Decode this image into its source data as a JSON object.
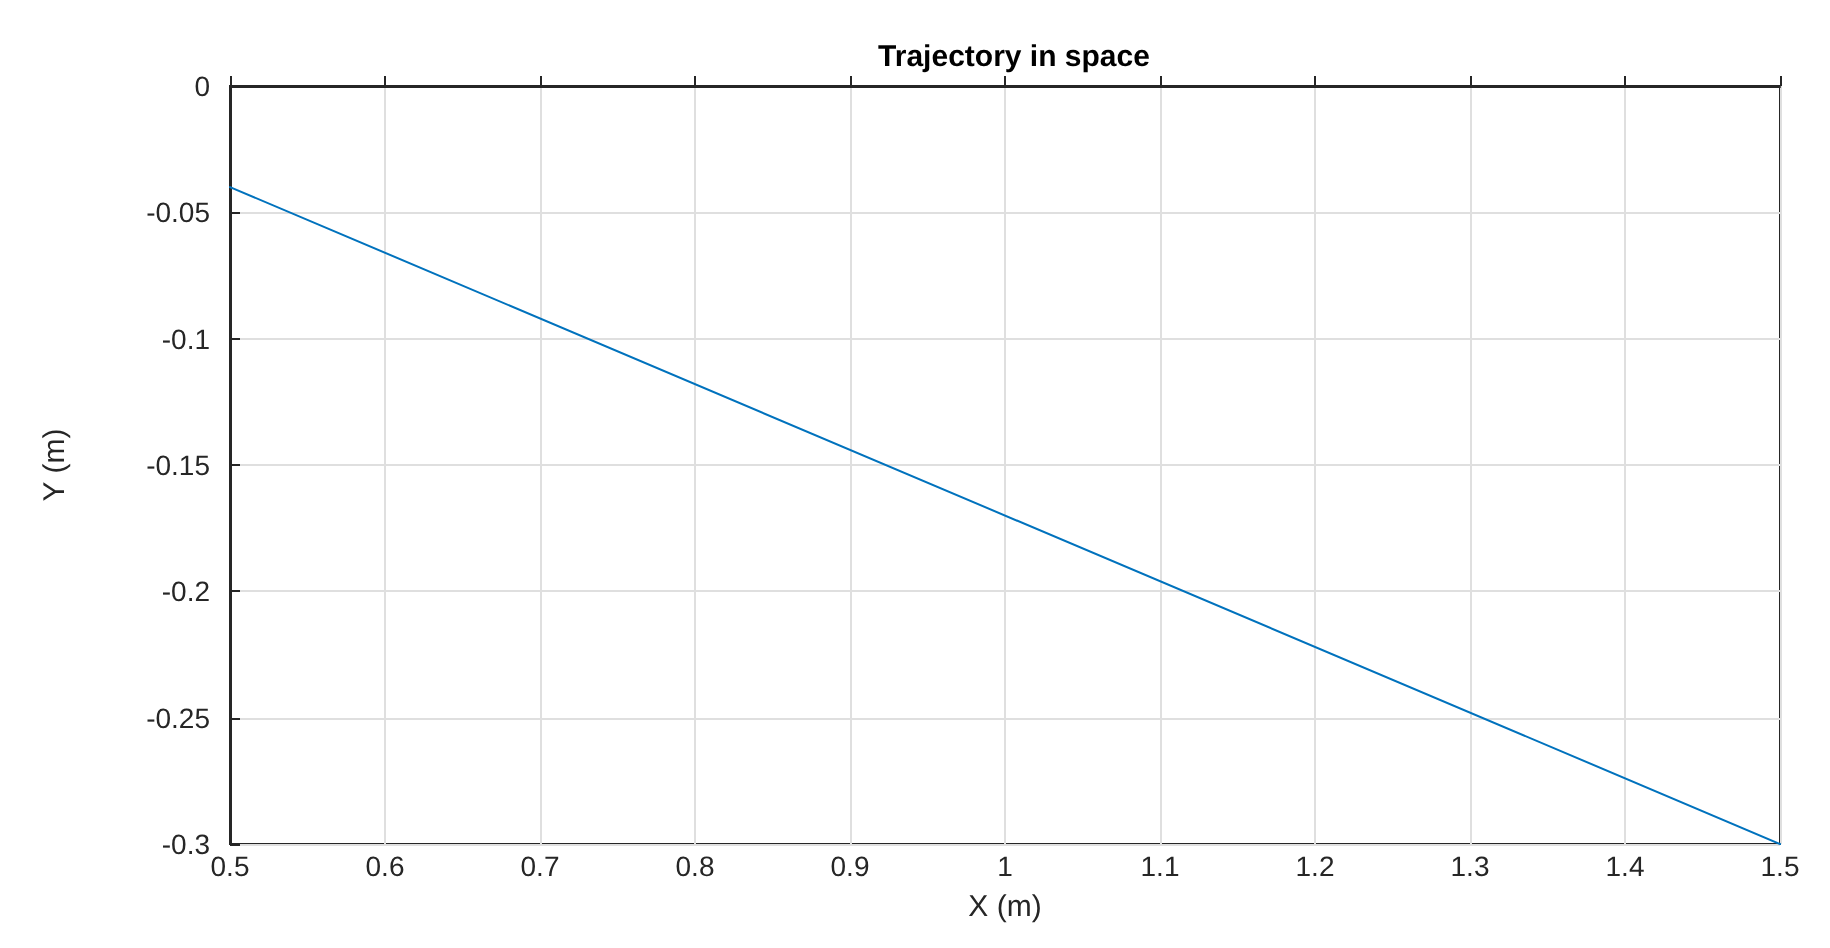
{
  "chart_data": {
    "type": "line",
    "title": "Trajectory in space",
    "xlabel": "X (m)",
    "ylabel": "Y (m)",
    "x": [
      0.5,
      1.5
    ],
    "series": [
      {
        "color": "#0072bd",
        "values": [
          -0.04,
          -0.3
        ]
      }
    ],
    "xlim": [
      0.5,
      1.5
    ],
    "xticks": [
      0.5,
      0.6,
      0.7,
      0.8,
      0.9,
      1,
      1.1,
      1.2,
      1.3,
      1.4,
      1.5
    ],
    "ylim": [
      -0.3,
      0
    ],
    "yticks": [
      -0.3,
      -0.25,
      -0.2,
      -0.15,
      -0.1,
      -0.05,
      0
    ],
    "grid": true,
    "marker": "none",
    "line_style": "solid"
  }
}
